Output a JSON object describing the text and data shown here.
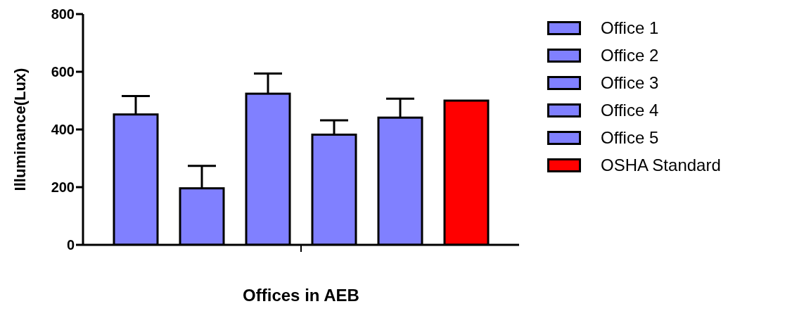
{
  "chart_data": {
    "type": "bar",
    "xlabel": "Offices in AEB",
    "ylabel": "Illuminance(Lux)",
    "categories": [
      null
    ],
    "series": [
      {
        "name": "Office 1",
        "color": "#8080ff",
        "values": [
          452
        ],
        "errors": [
          [
            452,
            516
          ]
        ]
      },
      {
        "name": "Office 2",
        "color": "#8080ff",
        "values": [
          196
        ],
        "errors": [
          [
            196,
            274
          ]
        ]
      },
      {
        "name": "Office 3",
        "color": "#8080ff",
        "values": [
          524
        ],
        "errors": [
          [
            524,
            594
          ]
        ]
      },
      {
        "name": "Office 4",
        "color": "#8080ff",
        "values": [
          382
        ],
        "errors": [
          [
            382,
            432
          ]
        ]
      },
      {
        "name": "Office 5",
        "color": "#8080ff",
        "values": [
          441
        ],
        "errors": [
          [
            441,
            507
          ]
        ]
      },
      {
        "name": "OSHA Standard",
        "color": "#ff0000",
        "values": [
          500
        ]
      }
    ],
    "ylim": [
      0,
      800
    ],
    "yticks": [
      0,
      200,
      400,
      600,
      800
    ],
    "grid": false,
    "legend": "top right"
  }
}
